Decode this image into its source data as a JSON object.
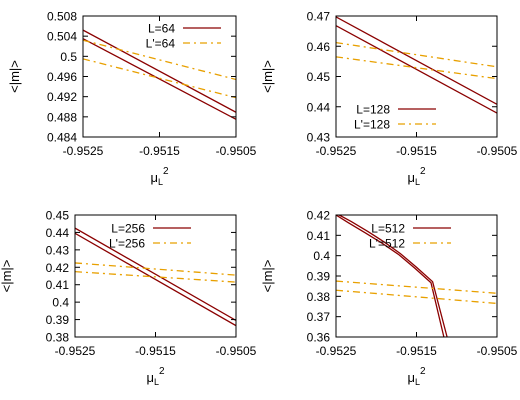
{
  "chart_data": [
    {
      "type": "line",
      "xlabel": "μL2",
      "ylabel": "<|m|>",
      "xlim": [
        -0.9525,
        -0.9505
      ],
      "ylim": [
        0.484,
        0.508
      ],
      "xticks": [
        -0.9525,
        -0.9515,
        -0.9505
      ],
      "xtick_labels": [
        "-0.9525",
        "-0.9515",
        "-0.9505"
      ],
      "yticks": [
        0.484,
        0.488,
        0.492,
        0.496,
        0.5,
        0.504,
        0.508
      ],
      "ytick_labels": [
        "0.484",
        "0.488",
        "0.492",
        "0.496",
        "0.5",
        "0.504",
        "0.508"
      ],
      "legend_position": "top-right",
      "series": [
        {
          "name": "L=64",
          "style": "solid",
          "color": "#8b0000",
          "lines": [
            {
              "x": [
                -0.9525,
                -0.9505
              ],
              "y": [
                0.5052,
                0.4889
              ]
            },
            {
              "x": [
                -0.9525,
                -0.9505
              ],
              "y": [
                0.5035,
                0.4875
              ]
            }
          ]
        },
        {
          "name": "L'=64",
          "style": "dash-dot",
          "color": "#e8a000",
          "lines": [
            {
              "x": [
                -0.9525,
                -0.9505
              ],
              "y": [
                0.5032,
                0.4954
              ]
            },
            {
              "x": [
                -0.9525,
                -0.9505
              ],
              "y": [
                0.4995,
                0.4918
              ]
            }
          ]
        }
      ]
    },
    {
      "type": "line",
      "xlabel": "μL2",
      "ylabel": "<|m|>",
      "xlim": [
        -0.9525,
        -0.9505
      ],
      "ylim": [
        0.43,
        0.47
      ],
      "xticks": [
        -0.9525,
        -0.9515,
        -0.9505
      ],
      "xtick_labels": [
        "-0.9525",
        "-0.9515",
        "-0.9505"
      ],
      "yticks": [
        0.43,
        0.44,
        0.45,
        0.46,
        0.47
      ],
      "ytick_labels": [
        "0.43",
        "0.44",
        "0.45",
        "0.46",
        "0.47"
      ],
      "legend_position": "bottom-left",
      "series": [
        {
          "name": "L=128",
          "style": "solid",
          "color": "#8b0000",
          "lines": [
            {
              "x": [
                -0.9525,
                -0.9505
              ],
              "y": [
                0.4697,
                0.4408
              ]
            },
            {
              "x": [
                -0.9525,
                -0.9505
              ],
              "y": [
                0.4668,
                0.4379
              ]
            }
          ]
        },
        {
          "name": "L'=128",
          "style": "dash-dot",
          "color": "#e8a000",
          "lines": [
            {
              "x": [
                -0.9525,
                -0.9505
              ],
              "y": [
                0.4612,
                0.4532
              ]
            },
            {
              "x": [
                -0.9525,
                -0.9505
              ],
              "y": [
                0.4565,
                0.4493
              ]
            }
          ]
        }
      ]
    },
    {
      "type": "line",
      "xlabel": "μL2",
      "ylabel": "<|m|>",
      "xlim": [
        -0.9525,
        -0.9505
      ],
      "ylim": [
        0.38,
        0.45
      ],
      "xticks": [
        -0.9525,
        -0.9515,
        -0.9505
      ],
      "xtick_labels": [
        "-0.9525",
        "-0.9515",
        "-0.9505"
      ],
      "yticks": [
        0.38,
        0.39,
        0.4,
        0.41,
        0.42,
        0.43,
        0.44,
        0.45
      ],
      "ytick_labels": [
        "0.38",
        "0.39",
        "0.4",
        "0.41",
        "0.42",
        "0.43",
        "0.44",
        "0.45"
      ],
      "legend_position": "top-right",
      "series": [
        {
          "name": "L=256",
          "style": "solid",
          "color": "#8b0000",
          "lines": [
            {
              "x": [
                -0.9525,
                -0.9505
              ],
              "y": [
                0.4425,
                0.3895
              ]
            },
            {
              "x": [
                -0.9525,
                -0.9505
              ],
              "y": [
                0.4395,
                0.3865
              ]
            }
          ]
        },
        {
          "name": "L'=256",
          "style": "dash-dot",
          "color": "#e8a000",
          "lines": [
            {
              "x": [
                -0.9525,
                -0.9505
              ],
              "y": [
                0.4225,
                0.4155
              ]
            },
            {
              "x": [
                -0.9525,
                -0.9505
              ],
              "y": [
                0.4175,
                0.4115
              ]
            }
          ]
        }
      ]
    },
    {
      "type": "line",
      "xlabel": "μL2",
      "ylabel": "<|m|>",
      "xlim": [
        -0.9525,
        -0.9505
      ],
      "ylim": [
        0.36,
        0.42
      ],
      "xticks": [
        -0.9525,
        -0.9515,
        -0.9505
      ],
      "xtick_labels": [
        "-0.9525",
        "-0.9515",
        "-0.9505"
      ],
      "yticks": [
        0.36,
        0.37,
        0.38,
        0.39,
        0.4,
        0.41,
        0.42
      ],
      "ytick_labels": [
        "0.36",
        "0.37",
        "0.38",
        "0.39",
        "0.4",
        "0.41",
        "0.42"
      ],
      "legend_position": "top-right",
      "series": [
        {
          "name": "L=512",
          "style": "solid",
          "color": "#8b0000",
          "lines": [
            {
              "x": [
                -0.95246,
                -0.95231,
                -0.9521,
                -0.9519,
                -0.9517,
                -0.9515,
                -0.9513,
                -0.95112
              ],
              "y": [
                0.42,
                0.4168,
                0.4118,
                0.4067,
                0.401,
                0.3943,
                0.3872,
                0.36
              ]
            },
            {
              "x": [
                -0.9525,
                -0.95235,
                -0.95214,
                -0.95193,
                -0.95172,
                -0.95152,
                -0.95132,
                -0.95116
              ],
              "y": [
                0.42,
                0.4163,
                0.4113,
                0.4062,
                0.4005,
                0.3938,
                0.3867,
                0.36
              ]
            }
          ]
        },
        {
          "name": "L'=512",
          "style": "dash-dot",
          "color": "#e8a000",
          "lines": [
            {
              "x": [
                -0.9525,
                -0.9505
              ],
              "y": [
                0.3875,
                0.3815
              ]
            },
            {
              "x": [
                -0.9525,
                -0.9505
              ],
              "y": [
                0.383,
                0.3765
              ]
            }
          ]
        }
      ]
    }
  ]
}
